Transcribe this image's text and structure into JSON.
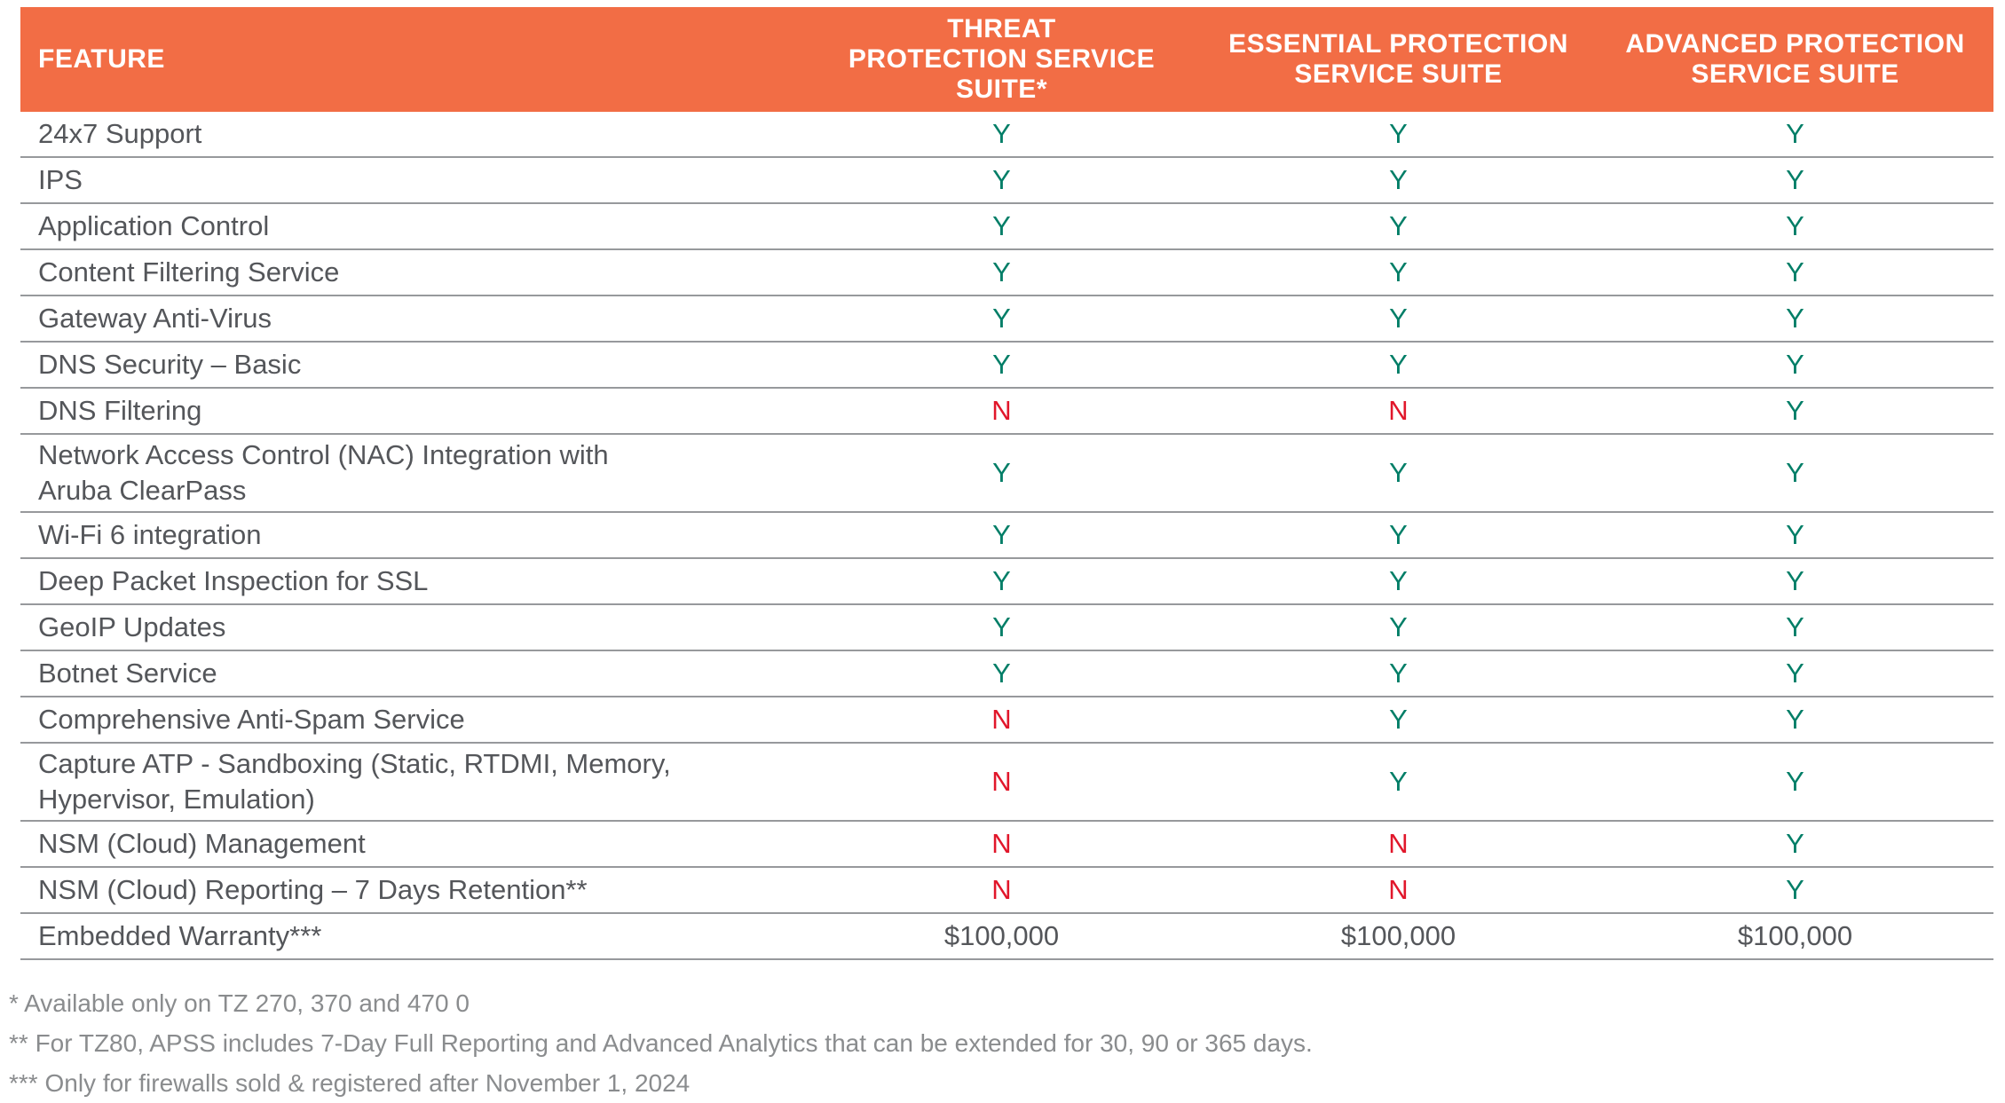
{
  "colors": {
    "header_bg": "#F26D45",
    "header_text": "#FFFFFF",
    "feature_text": "#54565A",
    "divider": "#97999C",
    "yes": "#007E67",
    "no": "#E1172B",
    "money": "#54565A",
    "footnote": "#8A8C8E"
  },
  "table": {
    "columns": [
      {
        "id": "feature",
        "label": "FEATURE"
      },
      {
        "id": "threat",
        "label": "THREAT\nPROTECTION SERVICE\nSUITE*"
      },
      {
        "id": "essential",
        "label": "ESSENTIAL PROTECTION\nSERVICE SUITE"
      },
      {
        "id": "advanced",
        "label": "ADVANCED PROTECTION\nSERVICE SUITE"
      }
    ],
    "rows": [
      {
        "feature": "24x7 Support",
        "values": [
          "Y",
          "Y",
          "Y"
        ]
      },
      {
        "feature": "IPS",
        "values": [
          "Y",
          "Y",
          "Y"
        ]
      },
      {
        "feature": "Application Control",
        "values": [
          "Y",
          "Y",
          "Y"
        ]
      },
      {
        "feature": "Content Filtering Service",
        "values": [
          "Y",
          "Y",
          "Y"
        ]
      },
      {
        "feature": "Gateway Anti-Virus",
        "values": [
          "Y",
          "Y",
          "Y"
        ]
      },
      {
        "feature": "DNS Security – Basic",
        "values": [
          "Y",
          "Y",
          "Y"
        ]
      },
      {
        "feature": "DNS Filtering",
        "values": [
          "N",
          "N",
          "Y"
        ]
      },
      {
        "feature": "Network Access Control (NAC) Integration with\nAruba ClearPass",
        "values": [
          "Y",
          "Y",
          "Y"
        ],
        "tall": true
      },
      {
        "feature": "Wi-Fi 6 integration",
        "values": [
          "Y",
          "Y",
          "Y"
        ]
      },
      {
        "feature": "Deep Packet Inspection for SSL",
        "values": [
          "Y",
          "Y",
          "Y"
        ]
      },
      {
        "feature": "GeoIP Updates",
        "values": [
          "Y",
          "Y",
          "Y"
        ]
      },
      {
        "feature": "Botnet Service",
        "values": [
          "Y",
          "Y",
          "Y"
        ]
      },
      {
        "feature": "Comprehensive Anti-Spam Service",
        "values": [
          "N",
          "Y",
          "Y"
        ]
      },
      {
        "feature": "Capture ATP -  Sandboxing (Static, RTDMI, Memory,\nHypervisor, Emulation)",
        "values": [
          "N",
          "Y",
          "Y"
        ],
        "tall": true
      },
      {
        "feature": "NSM (Cloud) Management",
        "values": [
          "N",
          "N",
          "Y"
        ]
      },
      {
        "feature": "NSM (Cloud) Reporting – 7 Days Retention**",
        "values": [
          "N",
          "N",
          "Y"
        ]
      },
      {
        "feature": "Embedded Warranty***",
        "values": [
          "$100,000",
          "$100,000",
          "$100,000"
        ]
      }
    ]
  },
  "footnotes": [
    "* Available only on TZ 270, 370 and 470 0",
    "** For TZ80, APSS includes 7-Day Full Reporting and Advanced Analytics that can be extended for 30, 90 or 365 days.",
    "*** Only for firewalls sold & registered after November 1, 2024"
  ]
}
